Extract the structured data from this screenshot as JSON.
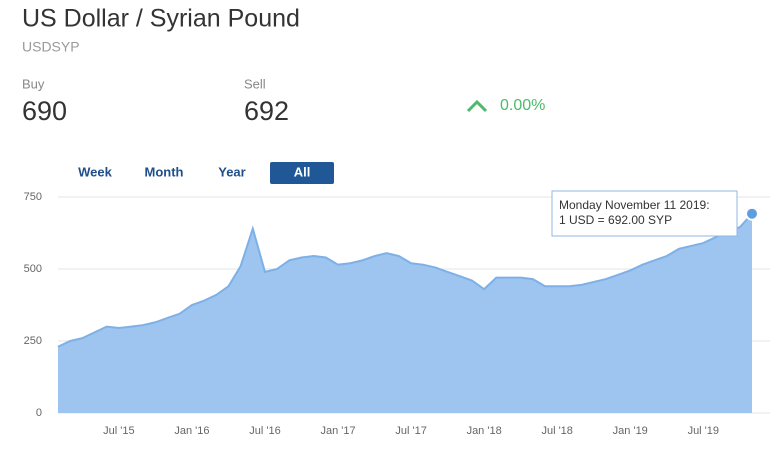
{
  "header": {
    "title": "US Dollar / Syrian Pound",
    "symbol": "USDSYP",
    "buy_label": "Buy",
    "buy": 690,
    "sell_label": "Sell",
    "sell": 692,
    "change": "0.00%"
  },
  "ranges": [
    "Week",
    "Month",
    "Year",
    "All"
  ],
  "chart_data": {
    "type": "area",
    "categories": [
      null,
      null,
      null,
      null,
      null,
      "Jul '15",
      null,
      null,
      null,
      null,
      null,
      "Jan '16",
      null,
      null,
      null,
      null,
      null,
      "Jul '16",
      null,
      null,
      null,
      null,
      null,
      "Jan '17",
      null,
      null,
      null,
      null,
      null,
      "Jul '17",
      null,
      null,
      null,
      null,
      null,
      "Jan '18",
      null,
      null,
      null,
      null,
      null,
      "Jul '18",
      null,
      null,
      null,
      null,
      null,
      "Jan '19",
      null,
      null,
      null,
      null,
      null,
      "Jul '19",
      null,
      null,
      null,
      null
    ],
    "values": [
      230,
      250,
      260,
      280,
      300,
      295,
      300,
      305,
      315,
      330,
      345,
      375,
      390,
      410,
      440,
      510,
      640,
      490,
      500,
      530,
      540,
      545,
      540,
      515,
      520,
      530,
      545,
      555,
      545,
      520,
      515,
      505,
      490,
      475,
      460,
      430,
      470,
      470,
      470,
      465,
      440,
      440,
      440,
      445,
      455,
      465,
      480,
      495,
      515,
      530,
      545,
      570,
      580,
      590,
      610,
      630,
      645,
      692
    ],
    "color": "#9ec5ef",
    "line_color": "#7eb0e8",
    "point_color": "#5d9de2",
    "ylim": [
      0,
      750
    ],
    "yticks": [
      0,
      250,
      500,
      750
    ],
    "grid": true,
    "tooltip": [
      "Monday November 11 2019:",
      "1 USD = 692.00 SYP"
    ]
  }
}
